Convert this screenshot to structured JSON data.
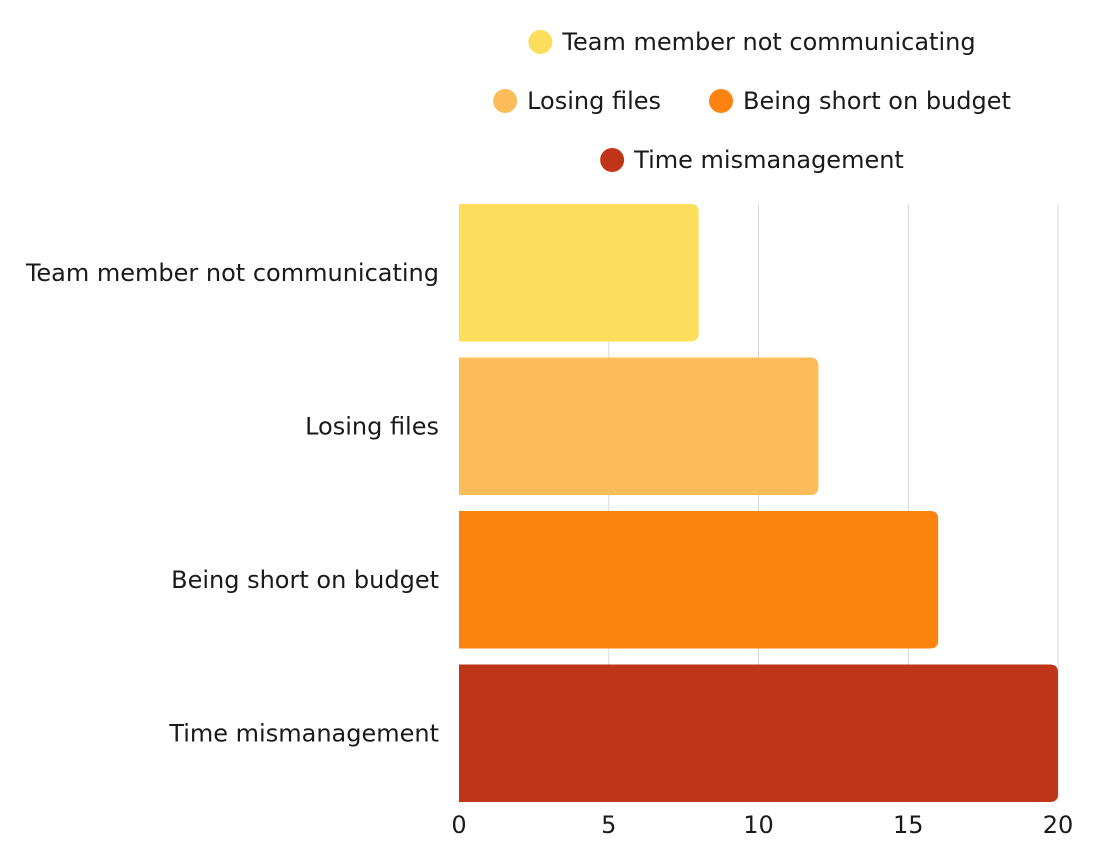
{
  "chart_data": {
    "type": "bar",
    "orientation": "horizontal",
    "title": "",
    "xlabel": "",
    "ylabel": "",
    "categories": [
      "Team member not communicating",
      "Losing files",
      "Being short on budget",
      "Time mismanagement"
    ],
    "values": [
      8,
      12,
      16,
      20
    ],
    "colors": [
      "#FDDD5C",
      "#FDBC5A",
      "#FD8310",
      "#BF3518"
    ],
    "xlim": [
      0,
      20
    ],
    "xticks": [
      "0",
      "5",
      "10",
      "15",
      "20"
    ],
    "grid": "vertical",
    "legend": {
      "position": "top",
      "rows": [
        [
          0
        ],
        [
          1,
          2
        ],
        [
          3
        ]
      ]
    }
  }
}
